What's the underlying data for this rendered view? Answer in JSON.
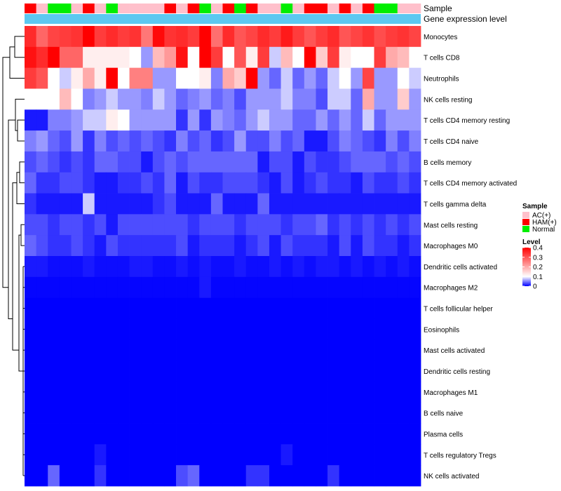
{
  "chart_data": {
    "type": "heatmap",
    "title": "",
    "annotation_labels": {
      "sample": "Sample",
      "gene_expression": "Gene expression level"
    },
    "rows": [
      "Monocytes",
      "T cells CD8",
      "Neutrophils",
      "NK cells resting",
      "T cells CD4 memory resting",
      "T cells CD4 naive",
      "B cells memory",
      "T cells CD4 memory activated",
      "T cells gamma delta",
      "Mast cells resting",
      "Macrophages M0",
      "Dendritic cells activated",
      "Macrophages M2",
      "T cells follicular helper",
      "Eosinophils",
      "Mast cells activated",
      "Dendritic cells resting",
      "Macrophages M1",
      "B cells naive",
      "Plasma cells",
      "T cells regulatory  Tregs",
      "NK cells activated"
    ],
    "sample_groups": [
      "HAM(+)",
      "AC(+)",
      "Normal",
      "Normal",
      "AC(+)",
      "HAM(+)",
      "AC(+)",
      "Normal",
      "AC(+)",
      "AC(+)",
      "AC(+)",
      "AC(+)",
      "HAM(+)",
      "AC(+)",
      "HAM(+)",
      "Normal",
      "AC(+)",
      "HAM(+)",
      "Normal",
      "HAM(+)",
      "AC(+)",
      "AC(+)",
      "Normal",
      "AC(+)",
      "HAM(+)",
      "HAM(+)",
      "AC(+)",
      "HAM(+)",
      "AC(+)",
      "HAM(+)",
      "Normal",
      "Normal",
      "AC(+)",
      "AC(+)"
    ],
    "gene_expression_color": "#5cc8f0",
    "values": [
      [
        0.35,
        0.28,
        0.32,
        0.33,
        0.34,
        0.4,
        0.33,
        0.35,
        0.33,
        0.34,
        0.26,
        0.39,
        0.34,
        0.35,
        0.33,
        0.4,
        0.27,
        0.35,
        0.3,
        0.32,
        0.35,
        0.33,
        0.37,
        0.33,
        0.3,
        0.33,
        0.35,
        0.3,
        0.32,
        0.34,
        0.31,
        0.33,
        0.34,
        0.32
      ],
      [
        0.38,
        0.35,
        0.4,
        0.28,
        0.28,
        0.12,
        0.12,
        0.12,
        0.12,
        0.1,
        0.06,
        0.18,
        0.22,
        0.38,
        0.1,
        0.4,
        0.33,
        0.1,
        0.3,
        0.12,
        0.33,
        0.08,
        0.18,
        0.1,
        0.4,
        0.16,
        0.33,
        0.12,
        0.1,
        0.1,
        0.33,
        0.2,
        0.18,
        0.1
      ],
      [
        0.33,
        0.3,
        0.1,
        0.08,
        0.12,
        0.2,
        0.12,
        0.4,
        0.1,
        0.25,
        0.25,
        0.06,
        0.06,
        0.1,
        0.1,
        0.12,
        0.05,
        0.2,
        0.16,
        0.4,
        0.06,
        0.04,
        0.08,
        0.04,
        0.06,
        0.04,
        0.08,
        0.1,
        0.06,
        0.32,
        0.06,
        0.06,
        0.1,
        0.08
      ],
      [
        0.1,
        0.1,
        0.1,
        0.18,
        0.1,
        0.05,
        0.06,
        0.08,
        0.06,
        0.06,
        0.05,
        0.08,
        0.06,
        0.04,
        0.05,
        0.06,
        0.04,
        0.05,
        0.03,
        0.06,
        0.06,
        0.06,
        0.08,
        0.05,
        0.05,
        0.03,
        0.08,
        0.08,
        0.04,
        0.2,
        0.06,
        0.06,
        0.16,
        0.06
      ],
      [
        0.01,
        0.01,
        0.05,
        0.05,
        0.06,
        0.08,
        0.08,
        0.12,
        0.1,
        0.06,
        0.06,
        0.06,
        0.06,
        0.02,
        0.06,
        0.02,
        0.06,
        0.05,
        0.04,
        0.06,
        0.08,
        0.06,
        0.06,
        0.04,
        0.04,
        0.06,
        0.04,
        0.06,
        0.04,
        0.08,
        0.04,
        0.06,
        0.06,
        0.06
      ],
      [
        0.05,
        0.06,
        0.04,
        0.03,
        0.06,
        0.02,
        0.05,
        0.03,
        0.04,
        0.03,
        0.04,
        0.03,
        0.02,
        0.05,
        0.03,
        0.04,
        0.02,
        0.03,
        0.06,
        0.03,
        0.03,
        0.05,
        0.03,
        0.04,
        0.01,
        0.01,
        0.03,
        0.05,
        0.04,
        0.03,
        0.02,
        0.05,
        0.03,
        0.05
      ],
      [
        0.03,
        0.04,
        0.03,
        0.02,
        0.03,
        0.02,
        0.04,
        0.04,
        0.03,
        0.03,
        0.01,
        0.03,
        0.04,
        0.03,
        0.04,
        0.04,
        0.04,
        0.04,
        0.04,
        0.04,
        0.01,
        0.03,
        0.03,
        0.01,
        0.03,
        0.02,
        0.02,
        0.03,
        0.04,
        0.04,
        0.04,
        0.03,
        0.04,
        0.03
      ],
      [
        0.04,
        0.02,
        0.02,
        0.03,
        0.03,
        0.02,
        0.01,
        0.01,
        0.02,
        0.02,
        0.03,
        0.02,
        0.04,
        0.01,
        0.03,
        0.02,
        0.02,
        0.03,
        0.03,
        0.03,
        0.02,
        0.01,
        0.03,
        0.01,
        0.02,
        0.03,
        0.02,
        0.02,
        0.01,
        0.03,
        0.02,
        0.02,
        0.03,
        0.02
      ],
      [
        0.02,
        0.01,
        0.01,
        0.01,
        0.01,
        0.08,
        0.01,
        0.01,
        0.01,
        0.01,
        0.01,
        0.02,
        0.03,
        0.01,
        0.01,
        0.01,
        0.04,
        0.01,
        0.01,
        0.01,
        0.04,
        0.01,
        0.01,
        0.01,
        0.01,
        0.01,
        0.01,
        0.01,
        0.01,
        0.01,
        0.01,
        0.01,
        0.01,
        0.01
      ],
      [
        0.03,
        0.03,
        0.02,
        0.03,
        0.03,
        0.02,
        0.03,
        0.01,
        0.03,
        0.03,
        0.03,
        0.03,
        0.03,
        0.03,
        0.02,
        0.03,
        0.03,
        0.03,
        0.02,
        0.03,
        0.03,
        0.03,
        0.02,
        0.03,
        0.03,
        0.04,
        0.02,
        0.03,
        0.02,
        0.03,
        0.02,
        0.03,
        0.02,
        0.03
      ],
      [
        0.04,
        0.03,
        0.02,
        0.02,
        0.03,
        0.02,
        0.01,
        0.03,
        0.02,
        0.02,
        0.02,
        0.02,
        0.02,
        0.03,
        0.01,
        0.02,
        0.02,
        0.02,
        0.01,
        0.02,
        0.03,
        0.01,
        0.03,
        0.02,
        0.02,
        0.02,
        0.01,
        0.03,
        0.01,
        0.03,
        0.02,
        0.02,
        0.01,
        0.02
      ],
      [
        0.01,
        0.01,
        0.005,
        0.005,
        0.005,
        0.01,
        0.005,
        0.005,
        0.005,
        0.01,
        0.01,
        0.005,
        0.005,
        0.01,
        0.005,
        0.01,
        0.005,
        0.005,
        0.01,
        0.005,
        0.005,
        0.01,
        0.005,
        0.01,
        0.005,
        0.01,
        0.01,
        0.005,
        0.01,
        0.005,
        0.01,
        0.005,
        0.01,
        0.005
      ],
      [
        0.002,
        0.002,
        0.002,
        0.002,
        0.002,
        0.002,
        0.002,
        0.002,
        0.002,
        0.002,
        0.002,
        0.002,
        0.002,
        0.002,
        0.002,
        0.01,
        0.002,
        0.002,
        0.002,
        0.002,
        0.002,
        0.002,
        0.002,
        0.002,
        0.002,
        0.002,
        0.002,
        0.002,
        0.002,
        0.002,
        0.002,
        0.002,
        0.002,
        0.002
      ],
      [
        0,
        0,
        0,
        0,
        0,
        0,
        0,
        0,
        0,
        0,
        0,
        0,
        0,
        0,
        0,
        0,
        0,
        0,
        0,
        0,
        0,
        0,
        0,
        0,
        0,
        0,
        0,
        0,
        0,
        0,
        0,
        0,
        0,
        0
      ],
      [
        0,
        0,
        0,
        0,
        0,
        0,
        0,
        0,
        0,
        0,
        0,
        0,
        0,
        0,
        0,
        0,
        0,
        0,
        0,
        0,
        0,
        0,
        0,
        0,
        0,
        0,
        0,
        0,
        0,
        0,
        0,
        0,
        0,
        0
      ],
      [
        0,
        0,
        0,
        0,
        0,
        0,
        0,
        0,
        0,
        0,
        0,
        0,
        0,
        0,
        0,
        0,
        0,
        0,
        0,
        0,
        0,
        0,
        0,
        0,
        0,
        0,
        0,
        0,
        0,
        0,
        0,
        0,
        0,
        0
      ],
      [
        0,
        0,
        0,
        0,
        0,
        0,
        0,
        0,
        0,
        0,
        0,
        0,
        0,
        0,
        0,
        0,
        0,
        0,
        0,
        0,
        0,
        0,
        0,
        0,
        0,
        0,
        0,
        0,
        0,
        0,
        0,
        0,
        0,
        0
      ],
      [
        0,
        0,
        0,
        0,
        0,
        0,
        0,
        0,
        0,
        0,
        0,
        0,
        0,
        0,
        0,
        0,
        0,
        0,
        0,
        0,
        0,
        0,
        0,
        0,
        0,
        0,
        0,
        0,
        0,
        0,
        0,
        0,
        0,
        0
      ],
      [
        0,
        0,
        0,
        0,
        0,
        0,
        0,
        0,
        0,
        0,
        0,
        0,
        0,
        0,
        0,
        0,
        0,
        0,
        0,
        0,
        0,
        0,
        0,
        0,
        0,
        0,
        0,
        0,
        0,
        0,
        0,
        0,
        0,
        0
      ],
      [
        0,
        0,
        0,
        0,
        0,
        0,
        0,
        0,
        0,
        0,
        0,
        0,
        0,
        0,
        0,
        0,
        0,
        0,
        0,
        0,
        0,
        0,
        0,
        0,
        0,
        0,
        0,
        0,
        0,
        0,
        0,
        0,
        0,
        0
      ],
      [
        0,
        0,
        0,
        0,
        0,
        0,
        0.01,
        0,
        0,
        0,
        0,
        0,
        0,
        0,
        0,
        0,
        0,
        0,
        0,
        0,
        0,
        0,
        0.01,
        0,
        0,
        0,
        0,
        0,
        0,
        0,
        0,
        0,
        0,
        0
      ],
      [
        0,
        0,
        0.04,
        0,
        0,
        0,
        0.02,
        0,
        0,
        0,
        0,
        0,
        0,
        0.03,
        0.04,
        0,
        0,
        0,
        0,
        0.02,
        0.02,
        0,
        0,
        0,
        0,
        0,
        0.02,
        0,
        0,
        0,
        0,
        0,
        0,
        0
      ]
    ],
    "color_scale": {
      "min": 0,
      "mid": 0.1,
      "max": 0.4,
      "low": "#0000ff",
      "mid_color": "#ffffff",
      "high": "#ff0000"
    },
    "legend": {
      "sample_title": "Sample",
      "sample_items": [
        {
          "label": "AC(+)",
          "color": "#ffc0cb"
        },
        {
          "label": "HAM(+)",
          "color": "#ff0000"
        },
        {
          "label": "Normal",
          "color": "#00ee00"
        }
      ],
      "level_title": "Level",
      "level_ticks": [
        "0.4",
        "0.3",
        "0.2",
        "0.1",
        "0"
      ],
      "level_tick_values": [
        0.4,
        0.3,
        0.2,
        0.1,
        0
      ],
      "position": "right"
    }
  }
}
